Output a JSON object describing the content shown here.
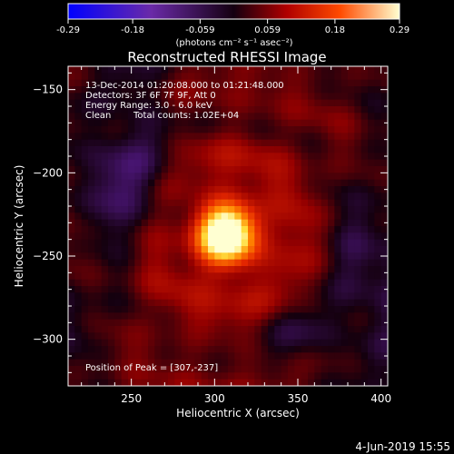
{
  "colorbar": {
    "tick_labels": [
      "-0.29",
      "-0.18",
      "-0.059",
      "0.059",
      "0.18",
      "0.29"
    ],
    "units_label": "(photons cm⁻² s⁻¹ asec⁻²)",
    "range": [
      -0.29,
      0.29
    ]
  },
  "annotations": {
    "time_range": "13-Dec-2014 01:20:08.000 to 01:21:48.000",
    "detectors": "Detectors: 3F 6F 7F 9F, Att 0",
    "energy": "Energy Range: 3.0 - 6.0 keV",
    "clean_label": "Clean",
    "total_counts": "Total counts: 1.02E+04",
    "peak": "Position of Peak = [307,-237]"
  },
  "footer": {
    "date": "4-Jun-2019 15:55"
  },
  "chart_data": {
    "type": "heatmap",
    "title": "Reconstructed RHESSI Image",
    "xlabel": "Heliocentric X (arcsec)",
    "ylabel": "Heliocentric Y (arcsec)",
    "xlim": [
      212,
      404
    ],
    "ylim": [
      -328,
      -136
    ],
    "x_ticks": [
      250,
      300,
      350,
      400
    ],
    "y_ticks": [
      -150,
      -200,
      -250,
      -300
    ],
    "x_tick_labels": [
      "250",
      "300",
      "350",
      "400"
    ],
    "y_tick_labels": [
      "−150",
      "−200",
      "−250",
      "−300"
    ],
    "peak_position": [
      307,
      -237
    ],
    "peak_value": 0.29,
    "colormap": "Blue-White-Red-Yellow diverging (IDL colortable)",
    "colors": {
      "background": "#000000",
      "text": "#ffffff"
    }
  }
}
